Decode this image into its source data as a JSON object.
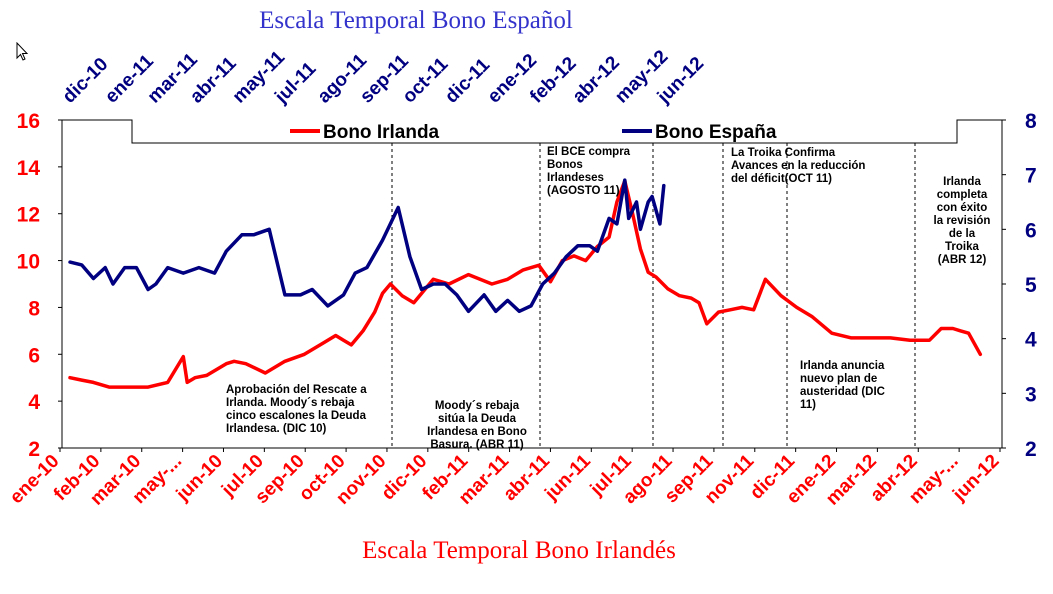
{
  "chart_data": {
    "type": "line",
    "title_top": "Escala Temporal Bono Español",
    "title_bottom": "Escala Temporal Bono Irlandés",
    "colors": {
      "ireland": "#ff0000",
      "spain": "#000080",
      "title_top": "#3333cc",
      "title_bottom": "#ff0000",
      "left_axis": "#ff0000",
      "right_axis": "#000080"
    },
    "left_axis": {
      "min": 2,
      "max": 16,
      "ticks": [
        "2",
        "4",
        "6",
        "8",
        "10",
        "12",
        "14",
        "16"
      ]
    },
    "right_axis": {
      "min": 2,
      "max": 8,
      "ticks": [
        "2",
        "3",
        "4",
        "5",
        "6",
        "7",
        "8"
      ]
    },
    "x_bottom_labels": [
      "ene-10",
      "feb-10",
      "mar-10",
      "may-...",
      "jun-10",
      "jul-10",
      "sep-10",
      "oct-10",
      "nov-10",
      "dic-10",
      "feb-11",
      "mar-11",
      "abr-11",
      "jun-11",
      "jul-11",
      "ago-11",
      "sep-11",
      "nov-11",
      "dic-11",
      "ene-12",
      "mar-12",
      "abr-12",
      "may-...",
      "jun-12"
    ],
    "x_top_labels": [
      "dic-10",
      "ene-11",
      "mar-11",
      "abr-11",
      "may-11",
      "jul-11",
      "ago-11",
      "sep-11",
      "oct-11",
      "dic-11",
      "ene-12",
      "feb-12",
      "abr-12",
      "may-12",
      "jun-12"
    ],
    "legend": [
      {
        "key": "ireland",
        "name": "Bono Irlanda"
      },
      {
        "key": "spain",
        "name": "Bono España"
      }
    ],
    "series": [
      {
        "key": "ireland",
        "name": "Bono Irlanda",
        "axis": "left",
        "x": [
          0,
          0.3,
          0.6,
          1.0,
          1.5,
          2.0,
          2.5,
          2.9,
          3.0,
          3.2,
          3.5,
          4.0,
          4.2,
          4.5,
          5.0,
          5.5,
          6.0,
          6.5,
          6.8,
          7.0,
          7.2,
          7.5,
          7.8,
          8.0,
          8.2,
          8.5,
          8.8,
          9.0,
          9.3,
          9.7,
          10.2,
          10.8,
          11.2,
          11.6,
          12.0,
          12.3,
          12.6,
          12.9,
          13.2,
          13.5,
          13.8,
          14.0,
          14.2,
          14.4,
          14.6,
          14.8,
          15.0,
          15.3,
          15.6,
          15.9,
          16.1,
          16.3,
          16.6,
          16.9,
          17.2,
          17.5,
          17.8,
          18.2,
          18.6,
          19.0,
          19.5,
          20.0,
          20.5,
          21.0,
          21.5,
          22.0,
          22.3,
          22.6,
          22.8,
          23.0,
          23.3
        ],
        "values": [
          5.0,
          4.9,
          4.8,
          4.6,
          4.6,
          4.6,
          4.8,
          5.9,
          4.8,
          5.0,
          5.1,
          5.6,
          5.7,
          5.6,
          5.2,
          5.7,
          6.0,
          6.5,
          6.8,
          6.6,
          6.4,
          7.0,
          7.8,
          8.6,
          9.0,
          8.5,
          8.2,
          8.6,
          9.2,
          9.0,
          9.4,
          9.0,
          9.2,
          9.6,
          9.8,
          9.1,
          10.0,
          10.2,
          10.0,
          10.6,
          11.0,
          12.5,
          13.4,
          12.0,
          10.5,
          9.5,
          9.3,
          8.8,
          8.5,
          8.4,
          8.2,
          7.3,
          7.8,
          7.9,
          8.0,
          7.9,
          9.2,
          8.5,
          8.0,
          7.6,
          6.9,
          6.7,
          6.7,
          6.7,
          6.6,
          6.6,
          7.1,
          7.1,
          7.0,
          6.9,
          6.0
        ]
      },
      {
        "key": "spain",
        "name": "Bono España",
        "axis": "right",
        "x": [
          0,
          0.3,
          0.6,
          0.9,
          1.1,
          1.4,
          1.7,
          2.0,
          2.2,
          2.5,
          2.9,
          3.3,
          3.7,
          4.0,
          4.4,
          4.7,
          5.1,
          5.5,
          5.9,
          6.2,
          6.6,
          7.0,
          7.3,
          7.6,
          8.0,
          8.4,
          8.7,
          9.0,
          9.3,
          9.6,
          9.9,
          10.2,
          10.6,
          10.9,
          11.2,
          11.5,
          11.8,
          12.1,
          12.4,
          12.7,
          13.0,
          13.3,
          13.5,
          13.8,
          14.0,
          14.2,
          14.3,
          14.5,
          14.6,
          14.8,
          14.9,
          15.1,
          15.2
        ],
        "values": [
          5.4,
          5.35,
          5.1,
          5.3,
          5.0,
          5.3,
          5.3,
          4.9,
          5.0,
          5.3,
          5.2,
          5.3,
          5.2,
          5.6,
          5.9,
          5.9,
          6.0,
          4.8,
          4.8,
          4.9,
          4.6,
          4.8,
          5.2,
          5.3,
          5.8,
          6.4,
          5.5,
          4.9,
          5.0,
          5.0,
          4.8,
          4.5,
          4.8,
          4.5,
          4.7,
          4.5,
          4.6,
          5.0,
          5.2,
          5.5,
          5.7,
          5.7,
          5.6,
          6.2,
          6.1,
          6.9,
          6.2,
          6.5,
          6.0,
          6.5,
          6.6,
          6.1,
          6.8
        ]
      }
    ],
    "annotations": [
      {
        "key": "rescue",
        "text": [
          "Aprobación del Rescate a",
          "Irlanda. Moody´s rebaja",
          "cinco escalones la Deuda",
          "Irlandesa. (DIC 10)"
        ]
      },
      {
        "key": "moodys",
        "text": [
          "Moody´s rebaja",
          "sitúa la Deuda",
          "Irlandesa en Bono",
          "Basura. (ABR 11)"
        ]
      },
      {
        "key": "bce",
        "text": [
          "El BCE compra",
          "Bonos",
          "Irlandeses",
          "(AGOSTO 11)"
        ]
      },
      {
        "key": "troika",
        "text": [
          "La Troika Confirma",
          "Avances en la reducción",
          "del déficit(OCT 11)"
        ]
      },
      {
        "key": "austerity",
        "text": [
          "Irlanda anuncia",
          "nuevo plan de",
          "austeridad (DIC",
          "11)"
        ]
      },
      {
        "key": "review",
        "text": [
          "Irlanda",
          "completa",
          "con éxito",
          "la revisión",
          "de la",
          "Troika",
          "(ABR 12)"
        ]
      }
    ],
    "grid": false,
    "legend_position": "top-center"
  }
}
